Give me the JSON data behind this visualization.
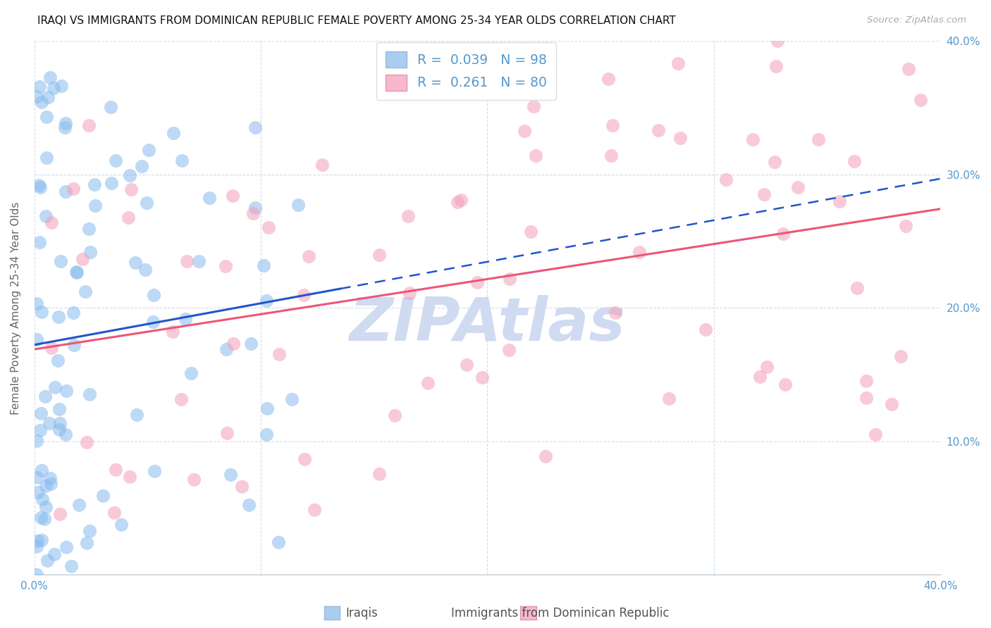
{
  "title": "IRAQI VS IMMIGRANTS FROM DOMINICAN REPUBLIC FEMALE POVERTY AMONG 25-34 YEAR OLDS CORRELATION CHART",
  "source": "Source: ZipAtlas.com",
  "ylabel": "Female Poverty Among 25-34 Year Olds",
  "xlim": [
    0.0,
    0.4
  ],
  "ylim": [
    0.0,
    0.4
  ],
  "xticks": [
    0.0,
    0.1,
    0.2,
    0.3,
    0.4
  ],
  "yticks": [
    0.0,
    0.1,
    0.2,
    0.3,
    0.4
  ],
  "xticklabels": [
    "0.0%",
    "",
    "",
    "",
    "40.0%"
  ],
  "yticklabels_right": [
    "",
    "10.0%",
    "20.0%",
    "30.0%",
    "40.0%"
  ],
  "r_blue": 0.039,
  "n_blue": 98,
  "r_pink": 0.261,
  "n_pink": 80,
  "blue_scatter_color": "#88bbee",
  "pink_scatter_color": "#f4a0b8",
  "blue_line_color": "#2255cc",
  "pink_line_color": "#ee5577",
  "blue_legend_color": "#aaccee",
  "pink_legend_color": "#f8b8cc",
  "tick_color": "#5599cc",
  "grid_color": "#d4dce8",
  "watermark_text": "ZIPAtlas",
  "watermark_color": "#d0daf0",
  "legend_text_blue": "R =  0.039   N = 98",
  "legend_text_pink": "R =  0.261   N = 80",
  "legend_label_blue": "Iraqis",
  "legend_label_pink": "Immigrants from Dominican Republic",
  "background": "#ffffff",
  "blue_line_solid_xmax": 0.135,
  "blue_line_dashed_xmin": 0.135,
  "blue_line_dashed_xmax": 0.4
}
